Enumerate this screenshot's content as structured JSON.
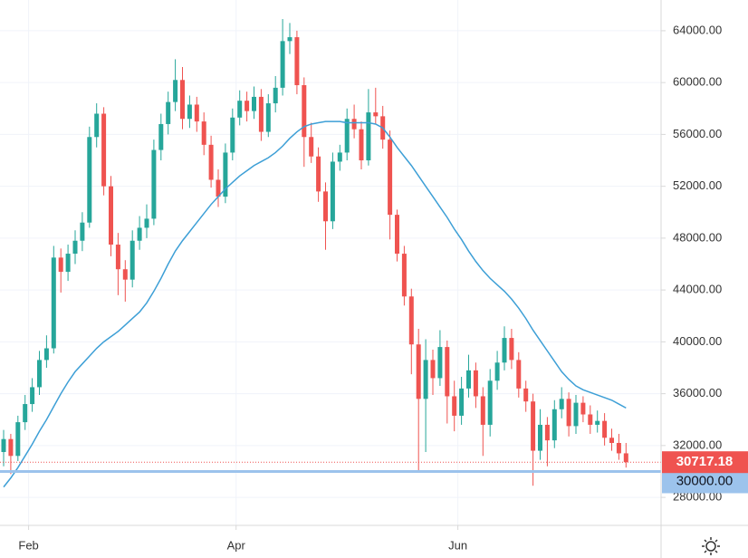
{
  "chart_data": {
    "type": "candlestick",
    "categories": [
      null,
      null,
      null,
      null,
      "Feb",
      null,
      null,
      null,
      null,
      null,
      null,
      null,
      null,
      null,
      null,
      null,
      null,
      null,
      null,
      null,
      null,
      null,
      null,
      null,
      null,
      null,
      null,
      null,
      null,
      null,
      null,
      null,
      null,
      "Apr",
      null,
      null,
      null,
      null,
      null,
      null,
      null,
      null,
      null,
      null,
      null,
      null,
      null,
      null,
      null,
      null,
      null,
      null,
      null,
      null,
      null,
      null,
      null,
      null,
      null,
      null,
      null,
      null,
      null,
      null,
      "Jun",
      null,
      null,
      null,
      null,
      null,
      null,
      null,
      null,
      null,
      null,
      null,
      null,
      null,
      null,
      null,
      null,
      null,
      null,
      null,
      null,
      null,
      null,
      null
    ],
    "ohlc": [
      [
        31500,
        33200,
        30400,
        32500
      ],
      [
        32500,
        32900,
        29800,
        31200
      ],
      [
        31200,
        34300,
        30800,
        33800
      ],
      [
        33800,
        35900,
        33200,
        35200
      ],
      [
        35200,
        37200,
        34600,
        36500
      ],
      [
        36500,
        39300,
        35900,
        38600
      ],
      [
        38600,
        40500,
        38000,
        39500
      ],
      [
        39500,
        47400,
        39100,
        46500
      ],
      [
        46500,
        47200,
        43800,
        45400
      ],
      [
        45400,
        47500,
        44700,
        46800
      ],
      [
        46800,
        48600,
        46000,
        47800
      ],
      [
        47800,
        50000,
        47000,
        49200
      ],
      [
        49200,
        56600,
        48800,
        55800
      ],
      [
        55800,
        58400,
        55000,
        57600
      ],
      [
        57600,
        58100,
        51300,
        52000
      ],
      [
        52000,
        52800,
        46600,
        47500
      ],
      [
        47500,
        48400,
        43600,
        45600
      ],
      [
        45600,
        46300,
        43100,
        44800
      ],
      [
        44800,
        48600,
        44200,
        47800
      ],
      [
        47800,
        49700,
        47100,
        48800
      ],
      [
        48800,
        50600,
        48000,
        49500
      ],
      [
        49500,
        55600,
        49000,
        54800
      ],
      [
        54800,
        57600,
        54000,
        56800
      ],
      [
        56800,
        59300,
        56000,
        58500
      ],
      [
        58500,
        61800,
        57800,
        60200
      ],
      [
        60200,
        61200,
        56400,
        57200
      ],
      [
        57200,
        59000,
        56500,
        58300
      ],
      [
        58300,
        58900,
        56200,
        57000
      ],
      [
        57000,
        57700,
        54400,
        55200
      ],
      [
        55200,
        55900,
        51900,
        52500
      ],
      [
        52500,
        53300,
        50400,
        51200
      ],
      [
        51200,
        55300,
        50700,
        54600
      ],
      [
        54600,
        58000,
        54000,
        57300
      ],
      [
        57300,
        59400,
        56700,
        58600
      ],
      [
        58600,
        59300,
        57000,
        57800
      ],
      [
        57800,
        59700,
        57200,
        58900
      ],
      [
        58900,
        59500,
        55500,
        56200
      ],
      [
        56200,
        59100,
        55800,
        58400
      ],
      [
        58400,
        60500,
        57700,
        59600
      ],
      [
        59600,
        64900,
        59000,
        63200
      ],
      [
        63200,
        64600,
        62200,
        63500
      ],
      [
        63500,
        64000,
        59100,
        59800
      ],
      [
        59800,
        60400,
        53500,
        55800
      ],
      [
        55800,
        56900,
        53800,
        54300
      ],
      [
        54300,
        55000,
        50800,
        51600
      ],
      [
        51600,
        52300,
        47100,
        49300
      ],
      [
        49300,
        54600,
        48700,
        53900
      ],
      [
        53900,
        55200,
        53200,
        54600
      ],
      [
        54600,
        58000,
        54000,
        57200
      ],
      [
        57200,
        58300,
        55700,
        56400
      ],
      [
        56400,
        57000,
        53300,
        54000
      ],
      [
        54000,
        59500,
        53600,
        57700
      ],
      [
        57700,
        59600,
        56800,
        57400
      ],
      [
        57400,
        58200,
        54900,
        55600
      ],
      [
        55600,
        56300,
        47900,
        49800
      ],
      [
        49800,
        50200,
        46200,
        46800
      ],
      [
        46800,
        47400,
        42800,
        43500
      ],
      [
        43500,
        44100,
        37500,
        39800
      ],
      [
        39800,
        41000,
        30100,
        35600
      ],
      [
        35600,
        40200,
        31500,
        38600
      ],
      [
        38600,
        39400,
        35900,
        37200
      ],
      [
        37200,
        40900,
        36600,
        39600
      ],
      [
        39600,
        40100,
        33700,
        35800
      ],
      [
        35800,
        37000,
        33100,
        34300
      ],
      [
        34300,
        37300,
        33600,
        36400
      ],
      [
        36400,
        39000,
        35700,
        37800
      ],
      [
        37800,
        38400,
        34900,
        35800
      ],
      [
        35800,
        36500,
        31200,
        33600
      ],
      [
        33600,
        37900,
        32700,
        37000
      ],
      [
        37000,
        39300,
        36300,
        38400
      ],
      [
        38400,
        41200,
        37800,
        40300
      ],
      [
        40300,
        41000,
        37900,
        38600
      ],
      [
        38600,
        39200,
        35700,
        36400
      ],
      [
        36400,
        37000,
        34600,
        35400
      ],
      [
        35400,
        36000,
        28900,
        31600
      ],
      [
        31600,
        34800,
        30900,
        33600
      ],
      [
        33600,
        34200,
        30400,
        32400
      ],
      [
        32400,
        35500,
        31800,
        34800
      ],
      [
        34800,
        36500,
        34100,
        35600
      ],
      [
        35600,
        36100,
        32700,
        33500
      ],
      [
        33500,
        35900,
        32900,
        35300
      ],
      [
        35300,
        35800,
        33800,
        34400
      ],
      [
        34400,
        35100,
        32900,
        33600
      ],
      [
        33600,
        34700,
        33000,
        33900
      ],
      [
        33900,
        34500,
        32000,
        32600
      ],
      [
        32600,
        33300,
        31600,
        32200
      ],
      [
        32200,
        32900,
        30900,
        31400
      ],
      [
        31400,
        32200,
        30300,
        30717.18
      ]
    ],
    "up_color": "#26a69a",
    "down_color": "#ef5350",
    "ma": {
      "color": "#3d9fd6",
      "values": [
        28800,
        29500,
        30300,
        31200,
        32100,
        33100,
        34000,
        35000,
        36000,
        36900,
        37700,
        38300,
        38900,
        39500,
        40000,
        40400,
        40800,
        41300,
        41800,
        42300,
        43000,
        43900,
        44900,
        46000,
        47000,
        47800,
        48500,
        49200,
        49900,
        50600,
        51200,
        51800,
        52300,
        52800,
        53200,
        53600,
        53900,
        54200,
        54600,
        55100,
        55700,
        56200,
        56600,
        56800,
        56900,
        57000,
        57000,
        57000,
        56900,
        56900,
        56900,
        56900,
        56800,
        56500,
        55800,
        55000,
        54300,
        53600,
        52800,
        52000,
        51200,
        50400,
        49600,
        48700,
        47900,
        47000,
        46200,
        45500,
        44900,
        44400,
        43900,
        43300,
        42600,
        41800,
        40900,
        40100,
        39300,
        38500,
        37700,
        37100,
        36600,
        36300,
        36100,
        35900,
        35700,
        35500,
        35200,
        34900
      ]
    },
    "ylim": [
      25840,
      66370
    ],
    "yticks": [
      {
        "value": 28000,
        "label": "28000.00"
      },
      {
        "value": 32000,
        "label": "32000.00"
      },
      {
        "value": 36000,
        "label": "36000.00"
      },
      {
        "value": 40000,
        "label": "40000.00"
      },
      {
        "value": 44000,
        "label": "44000.00"
      },
      {
        "value": 48000,
        "label": "48000.00"
      },
      {
        "value": 52000,
        "label": "52000.00"
      },
      {
        "value": 56000,
        "label": "56000.00"
      },
      {
        "value": 60000,
        "label": "60000.00"
      },
      {
        "value": 64000,
        "label": "64000.00"
      }
    ],
    "grid": true,
    "last_price": 30717.18,
    "last_price_color": "#ef5350",
    "level": {
      "value": 30000,
      "label": "30000.00"
    },
    "level_color": "#9cc3ec"
  }
}
